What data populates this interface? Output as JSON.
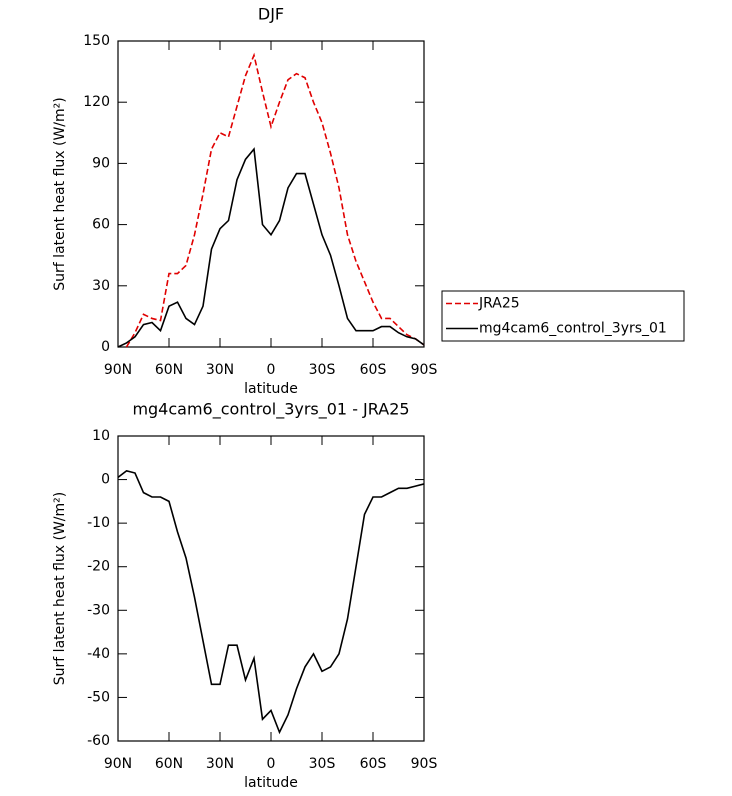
{
  "chart_data": [
    {
      "type": "line",
      "title": "DJF",
      "xlabel": "latitude",
      "ylabel": "Surf latent heat flux (W/m²)",
      "x": [
        90,
        85,
        80,
        75,
        70,
        65,
        60,
        55,
        50,
        45,
        40,
        35,
        30,
        25,
        20,
        15,
        10,
        5,
        0,
        -5,
        -10,
        -15,
        -20,
        -25,
        -30,
        -35,
        -40,
        -45,
        -50,
        -55,
        -60,
        -65,
        -70,
        -75,
        -80,
        -85,
        -90
      ],
      "series": [
        {
          "name": "JRA25",
          "color": "#e00000",
          "dash": true,
          "values": [
            null,
            0,
            7,
            16,
            14,
            13,
            36,
            36,
            40,
            55,
            75,
            97,
            105,
            103,
            118,
            133,
            143,
            125,
            108,
            120,
            131,
            134,
            132,
            120,
            110,
            95,
            78,
            55,
            42,
            32,
            22,
            14,
            14,
            10,
            6,
            4,
            1
          ]
        },
        {
          "name": "mg4cam6_control_3yrs_01",
          "color": "#000000",
          "dash": false,
          "values": [
            0,
            2,
            5,
            11,
            12,
            8,
            20,
            22,
            14,
            11,
            20,
            48,
            58,
            62,
            82,
            92,
            97,
            60,
            55,
            62,
            78,
            85,
            85,
            70,
            55,
            45,
            30,
            14,
            8,
            8,
            8,
            10,
            10,
            7,
            5,
            4,
            1
          ]
        }
      ],
      "xlim": [
        90,
        -90
      ],
      "xticks": [
        {
          "value": 90,
          "label": "90N"
        },
        {
          "value": 60,
          "label": "60N"
        },
        {
          "value": 30,
          "label": "30N"
        },
        0,
        {
          "value": -30,
          "label": "30S"
        },
        {
          "value": -60,
          "label": "60S"
        },
        {
          "value": -90,
          "label": "90S"
        }
      ],
      "ylim": [
        0,
        150
      ],
      "yticks": [
        0,
        30,
        60,
        90,
        120,
        150
      ],
      "legend": "right"
    },
    {
      "type": "line",
      "title": "mg4cam6_control_3yrs_01 - JRA25",
      "xlabel": "latitude",
      "ylabel": "Surf latent heat flux (W/m²)",
      "x": [
        90,
        85,
        80,
        75,
        70,
        65,
        60,
        55,
        50,
        45,
        40,
        35,
        30,
        25,
        20,
        15,
        10,
        5,
        0,
        -5,
        -10,
        -15,
        -20,
        -25,
        -30,
        -35,
        -40,
        -45,
        -50,
        -55,
        -60,
        -65,
        -70,
        -75,
        -80,
        -85,
        -90
      ],
      "color": "#000000",
      "values": [
        0.5,
        2,
        1.5,
        -3,
        -4,
        -4,
        -5,
        -12,
        -18,
        -27,
        -37,
        -47,
        -47,
        -38,
        -38,
        -46,
        -41,
        -55,
        -53,
        -58,
        -54,
        -48,
        -43,
        -40,
        -44,
        -43,
        -40,
        -32,
        -20,
        -8,
        -4,
        -4,
        -3,
        -2,
        -2,
        -1.5,
        -1
      ],
      "xlim": [
        90,
        -90
      ],
      "xticks": [
        {
          "value": 90,
          "label": "90N"
        },
        {
          "value": 60,
          "label": "60N"
        },
        {
          "value": 30,
          "label": "30N"
        },
        0,
        {
          "value": -30,
          "label": "30S"
        },
        {
          "value": -60,
          "label": "60S"
        },
        {
          "value": -90,
          "label": "90S"
        }
      ],
      "ylim": [
        -60,
        10
      ],
      "yticks": [
        -60,
        -50,
        -40,
        -30,
        -20,
        -10,
        0,
        10
      ]
    }
  ]
}
